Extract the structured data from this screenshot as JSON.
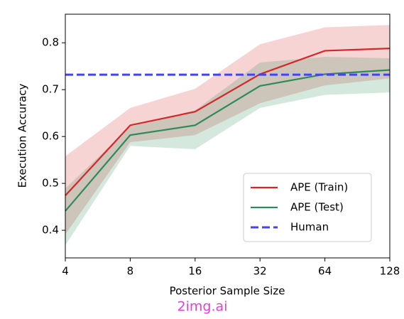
{
  "chart_data": {
    "type": "line",
    "xlabel": "Posterior Sample Size",
    "ylabel": "Execution Accuracy",
    "x": [
      4,
      8,
      16,
      32,
      64,
      128
    ],
    "xscale": "log2",
    "xlim": [
      4,
      128
    ],
    "xticks": [
      4,
      8,
      16,
      32,
      64,
      128
    ],
    "ylim": [
      0.341,
      0.861
    ],
    "yticks": [
      0.4,
      0.5,
      0.6,
      0.7,
      0.8
    ],
    "series": [
      {
        "name": "APE (Train)",
        "color": "#d62728",
        "values": [
          0.474,
          0.624,
          0.653,
          0.733,
          0.783,
          0.788
        ],
        "lower": [
          0.391,
          0.588,
          0.603,
          0.671,
          0.709,
          0.724
        ],
        "upper": [
          0.558,
          0.661,
          0.702,
          0.797,
          0.833,
          0.838
        ]
      },
      {
        "name": "APE (Test)",
        "color": "#2e8b57",
        "values": [
          0.441,
          0.603,
          0.624,
          0.708,
          0.733,
          0.742
        ],
        "lower": [
          0.368,
          0.58,
          0.573,
          0.661,
          0.689,
          0.694
        ],
        "upper": [
          0.489,
          0.621,
          0.656,
          0.758,
          0.77,
          0.767
        ]
      }
    ],
    "hlines": [
      {
        "name": "Human",
        "color": "#4444ee",
        "value": 0.732
      }
    ],
    "legend": "lower right",
    "watermark": "2img.ai"
  }
}
